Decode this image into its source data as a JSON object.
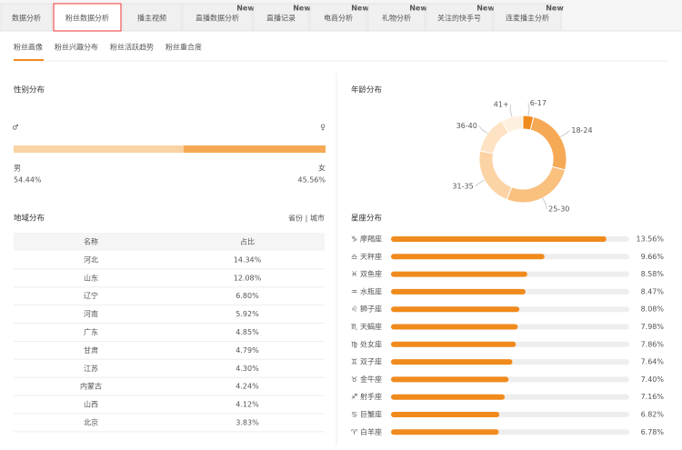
{
  "tabs": [
    {
      "label": "数据分析"
    },
    {
      "label": "粉丝数据分析",
      "active": true
    },
    {
      "label": "播主视频"
    },
    {
      "label": "直播数据分析",
      "badge": "New"
    },
    {
      "label": "直播记录",
      "badge": "New"
    },
    {
      "label": "电商分析",
      "badge": "New"
    },
    {
      "label": "礼物分析",
      "badge": "New"
    },
    {
      "label": "关注的快手号",
      "badge": "New"
    },
    {
      "label": "连麦播主分析",
      "badge": "New"
    }
  ],
  "sub_tabs": [
    {
      "label": "粉丝画像",
      "active": true
    },
    {
      "label": "粉丝兴趣分布"
    },
    {
      "label": "粉丝活跃趋势"
    },
    {
      "label": "粉丝重合度"
    }
  ],
  "gender": {
    "title": "性别分布",
    "segments": [
      {
        "label": "男",
        "value": 54.44,
        "value_label": "54.44%",
        "color": "#fad3a4"
      },
      {
        "label": "女",
        "value": 45.56,
        "value_label": "45.56%",
        "color": "#f6a955"
      }
    ]
  },
  "age": {
    "title": "年龄分布",
    "type": "donut",
    "categories": [
      "6-17",
      "18-24",
      "25-30",
      "31-35",
      "36-40",
      "41+"
    ],
    "values": [
      4,
      25,
      27,
      22,
      14,
      8
    ],
    "colors": [
      "#f08a1c",
      "#f6a955",
      "#f9c07e",
      "#fbd3a4",
      "#fde2c3",
      "#fef0df"
    ]
  },
  "region": {
    "title": "地域分布",
    "toggle": [
      "省份",
      "城市"
    ],
    "header": [
      "名称",
      "占比"
    ],
    "rows": [
      [
        "河北",
        "14.34%"
      ],
      [
        "山东",
        "12.08%"
      ],
      [
        "辽宁",
        "6.80%"
      ],
      [
        "河南",
        "5.92%"
      ],
      [
        "广东",
        "4.85%"
      ],
      [
        "甘肃",
        "4.79%"
      ],
      [
        "江苏",
        "4.30%"
      ],
      [
        "内蒙古",
        "4.24%"
      ],
      [
        "山西",
        "4.12%"
      ],
      [
        "北京",
        "3.83%"
      ]
    ]
  },
  "zodiac": {
    "title": "星座分布",
    "xlim": [
      0,
      15
    ],
    "color": "#f08a1c",
    "items": [
      {
        "icon": "♑",
        "name": "摩羯座",
        "value": 13.56,
        "value_label": "13.56%"
      },
      {
        "icon": "♎",
        "name": "天秤座",
        "value": 9.66,
        "value_label": "9.66%"
      },
      {
        "icon": "♓",
        "name": "双鱼座",
        "value": 8.58,
        "value_label": "8.58%"
      },
      {
        "icon": "♒",
        "name": "水瓶座",
        "value": 8.47,
        "value_label": "8.47%"
      },
      {
        "icon": "♌",
        "name": "狮子座",
        "value": 8.08,
        "value_label": "8.08%"
      },
      {
        "icon": "♏",
        "name": "天蝎座",
        "value": 7.98,
        "value_label": "7.98%"
      },
      {
        "icon": "♍",
        "name": "处女座",
        "value": 7.86,
        "value_label": "7.86%"
      },
      {
        "icon": "♊",
        "name": "双子座",
        "value": 7.64,
        "value_label": "7.64%"
      },
      {
        "icon": "♉",
        "name": "金牛座",
        "value": 7.4,
        "value_label": "7.40%"
      },
      {
        "icon": "♐",
        "name": "射手座",
        "value": 7.16,
        "value_label": "7.16%"
      },
      {
        "icon": "♋",
        "name": "巨蟹座",
        "value": 6.82,
        "value_label": "6.82%"
      },
      {
        "icon": "♈",
        "name": "白羊座",
        "value": 6.78,
        "value_label": "6.78%"
      }
    ]
  }
}
